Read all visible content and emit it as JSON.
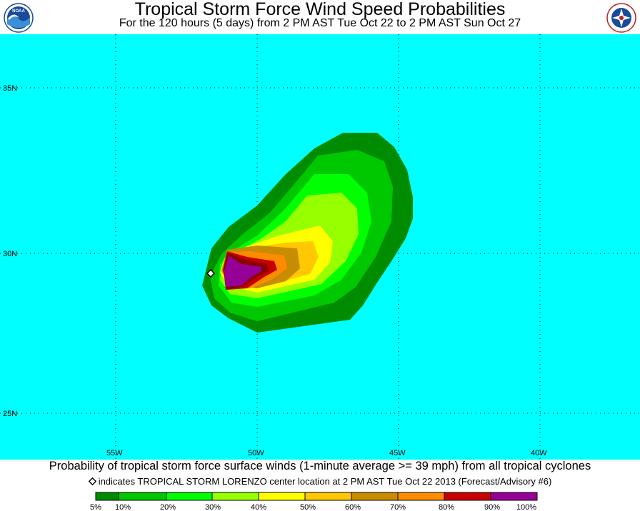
{
  "header": {
    "title": "Tropical Storm Force Wind Speed Probabilities",
    "subtitle": "For the 120 hours (5 days) from 2 PM AST Tue Oct 22 to 2 PM AST Sun Oct 27"
  },
  "logos": {
    "left": {
      "icon": "noaa-logo-icon",
      "text": "NOAA"
    },
    "right": {
      "icon": "nws-logo-icon"
    }
  },
  "map": {
    "background_color": "#00ffff",
    "gridlines": "dotted",
    "lat_labels": [
      "35N",
      "30N",
      "25N"
    ],
    "lon_labels": [
      "55W",
      "50W",
      "45W",
      "40W"
    ],
    "storm_center_marker": "diamond-icon"
  },
  "caption": "Probability of tropical storm force surface winds (1-minute average >= 39 mph) from all tropical cyclones",
  "legend_note": "indicates TROPICAL STORM LORENZO center location at 2 PM AST Tue Oct 22 2013 (Forecast/Advisory #6)",
  "scale": {
    "labels": [
      "5%",
      "10%",
      "20%",
      "30%",
      "40%",
      "50%",
      "60%",
      "70%",
      "80%",
      "90%",
      "100%"
    ],
    "colors": [
      "#008c00",
      "#00c800",
      "#00ff00",
      "#96ff00",
      "#ffff00",
      "#ffc800",
      "#c88c00",
      "#ff8c00",
      "#c80000",
      "#8c0000",
      "#960096"
    ]
  }
}
